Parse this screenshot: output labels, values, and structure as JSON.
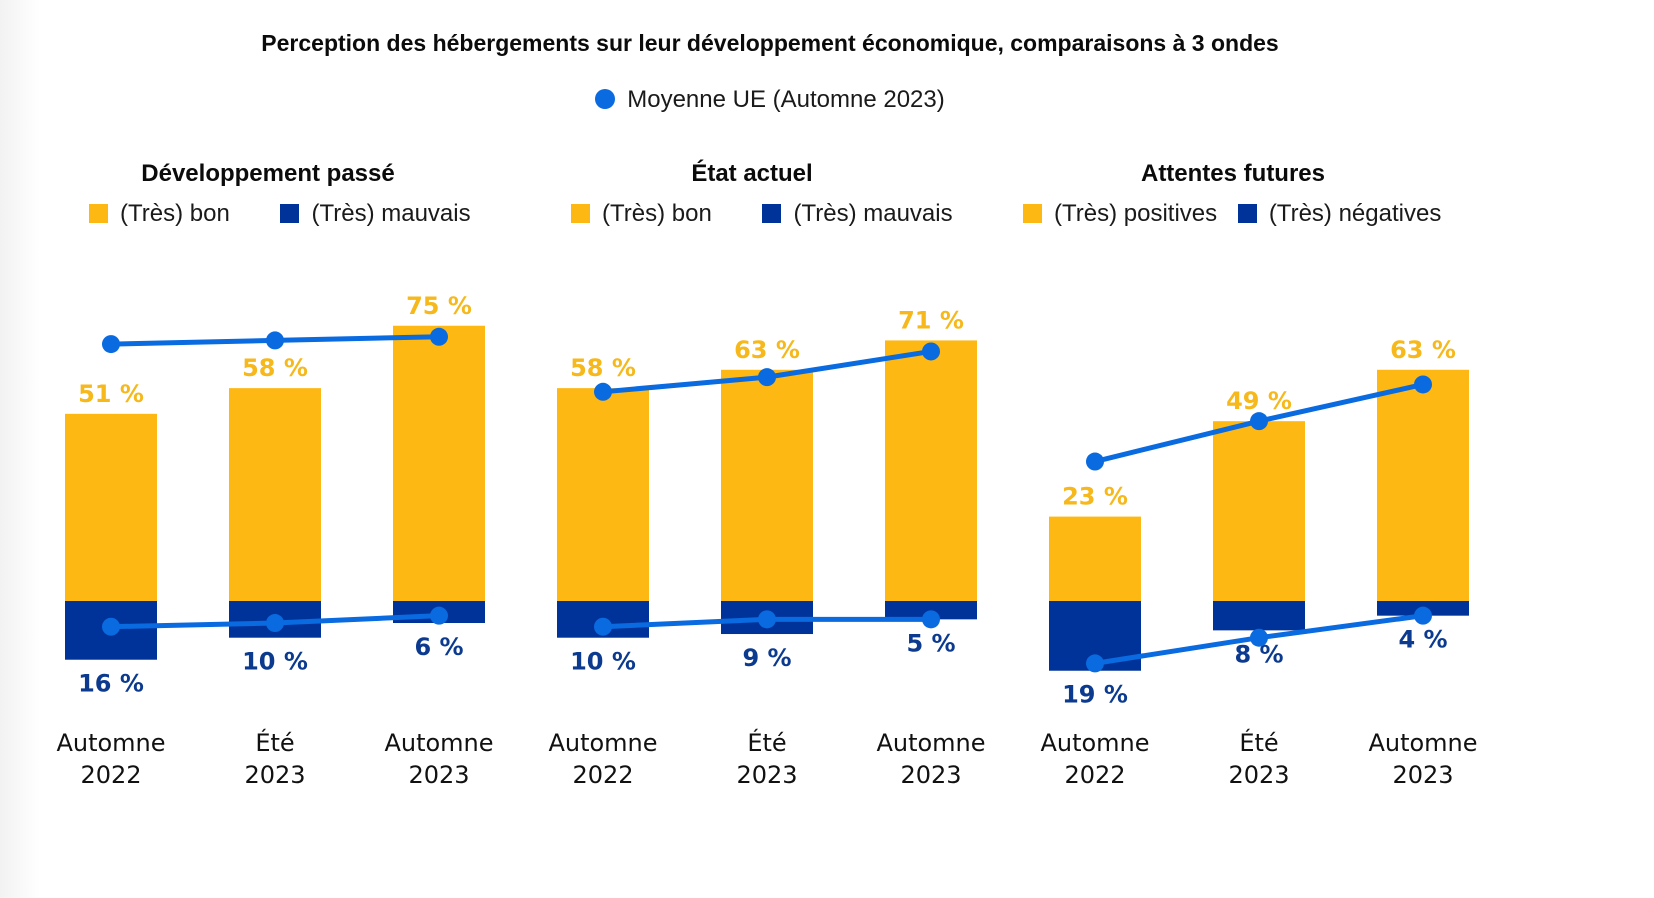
{
  "title": "Perception des hébergements sur leur développement économique, comparaisons à 3 ondes",
  "average_legend": "Moyenne UE (Automne 2023)",
  "colors": {
    "positive": "#fdb813",
    "negative": "#003399",
    "average": "#0a6ae0",
    "positive_label": "#f6b81a",
    "negative_label": "#0b3a8f"
  },
  "chart_data": [
    {
      "type": "bar",
      "title": "Développement passé",
      "categories": [
        [
          "Automne",
          "2022"
        ],
        [
          "Été",
          "2023"
        ],
        [
          "Automne",
          "2023"
        ]
      ],
      "series": [
        {
          "name": "(Très) bon",
          "values": [
            51,
            58,
            75
          ],
          "labels": [
            "51 %",
            "58 %",
            "75 %"
          ]
        },
        {
          "name": "(Très) mauvais",
          "values": [
            16,
            10,
            6
          ],
          "labels": [
            "16 %",
            "10 %",
            "6 %"
          ]
        },
        {
          "name": "Moyenne UE (Automne 2023) – positif",
          "type": "line",
          "values": [
            70,
            71,
            72
          ]
        },
        {
          "name": "Moyenne UE (Automne 2023) – négatif",
          "type": "line",
          "values": [
            7,
            6,
            4
          ]
        }
      ],
      "ylim": [
        -20,
        80
      ]
    },
    {
      "type": "bar",
      "title": "État actuel",
      "categories": [
        [
          "Automne",
          "2022"
        ],
        [
          "Été",
          "2023"
        ],
        [
          "Automne",
          "2023"
        ]
      ],
      "series": [
        {
          "name": "(Très) bon",
          "values": [
            58,
            63,
            71
          ],
          "labels": [
            "58 %",
            "63 %",
            "71 %"
          ]
        },
        {
          "name": "(Très) mauvais",
          "values": [
            10,
            9,
            5
          ],
          "labels": [
            "10 %",
            "9 %",
            "5 %"
          ]
        },
        {
          "name": "Moyenne UE (Automne 2023) – positif",
          "type": "line",
          "values": [
            57,
            61,
            68
          ]
        },
        {
          "name": "Moyenne UE (Automne 2023) – négatif",
          "type": "line",
          "values": [
            7,
            5,
            5
          ]
        }
      ],
      "ylim": [
        -20,
        80
      ]
    },
    {
      "type": "bar",
      "title": "Attentes futures",
      "categories": [
        [
          "Automne",
          "2022"
        ],
        [
          "Été",
          "2023"
        ],
        [
          "Automne",
          "2023"
        ]
      ],
      "series": [
        {
          "name": "(Très) positives",
          "values": [
            23,
            49,
            63
          ],
          "labels": [
            "23 %",
            "49 %",
            "63 %"
          ]
        },
        {
          "name": "(Très) négatives",
          "values": [
            19,
            8,
            4
          ],
          "labels": [
            "19 %",
            "8 %",
            "4 %"
          ]
        },
        {
          "name": "Moyenne UE (Automne 2023) – positif",
          "type": "line",
          "values": [
            38,
            49,
            59
          ]
        },
        {
          "name": "Moyenne UE (Automne 2023) – négatif",
          "type": "line",
          "values": [
            17,
            10,
            4
          ]
        }
      ],
      "ylim": [
        -20,
        80
      ]
    }
  ]
}
